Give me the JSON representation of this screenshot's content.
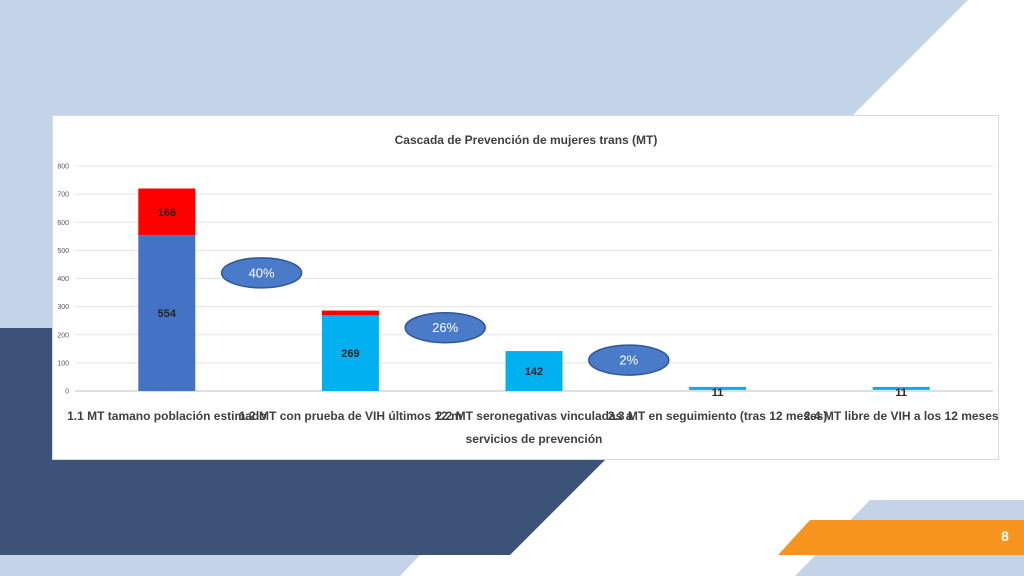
{
  "slide": {
    "page_number": "8",
    "colors": {
      "light_blue": "#c5d3e8",
      "navy": "#3d5279",
      "orange": "#f7941d"
    }
  },
  "chart_data": {
    "type": "bar",
    "stacked": true,
    "title": "Cascada de Prevención  de mujeres trans (MT)",
    "categories": [
      [
        "1.1 MT tamano  población estimado"
      ],
      [
        "1.2 MT con prueba de VIH últimos 12 m"
      ],
      [
        "2.2 MT seronegativas vinculadas a",
        "servicios de prevención"
      ],
      [
        "2.3 MT en seguimiento (tras 12 meses)"
      ],
      [
        "2.4 MT libre de VIH a los 12 meses"
      ]
    ],
    "series": [
      {
        "color": "#4472c4",
        "alt_color": "#00b0f0",
        "values": [
          554,
          269,
          142,
          11,
          11
        ],
        "labels": [
          "554",
          "269",
          "142",
          "11",
          "11"
        ]
      },
      {
        "color": "#ff0000",
        "values": [
          166,
          17,
          0,
          0,
          0
        ],
        "labels": [
          "166",
          "",
          "",
          "",
          ""
        ]
      }
    ],
    "ylim": [
      0,
      800
    ],
    "yticks": [
      0,
      100,
      200,
      300,
      400,
      500,
      600,
      700,
      800
    ],
    "grid": true,
    "legend": "none",
    "annotations": [
      {
        "text": "40%",
        "between": [
          0,
          1
        ],
        "y": 420
      },
      {
        "text": "26%",
        "between": [
          1,
          2
        ],
        "y": 225
      },
      {
        "text": "2%",
        "between": [
          2,
          3
        ],
        "y": 110
      }
    ]
  }
}
